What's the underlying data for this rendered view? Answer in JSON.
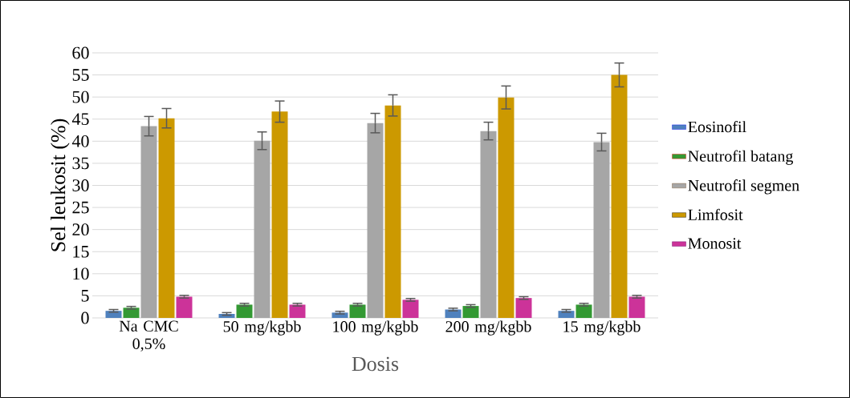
{
  "chart_data": {
    "type": "bar",
    "xlabel": "Dosis",
    "ylabel": "Sel leukosit (%)",
    "categories": [
      "Na CMC 0,5%",
      "50 mg/kgbb",
      "100 mg/kgbb",
      "200 mg/kgbb",
      "15 mg/kgbb"
    ],
    "series": [
      {
        "name": "Eosinofil",
        "color": "#4f81bd",
        "values": [
          1.6,
          0.9,
          1.2,
          1.9,
          1.6
        ],
        "errors": [
          0.3,
          0.3,
          0.3,
          0.3,
          0.3
        ]
      },
      {
        "name": "Neutrofil batang",
        "color": "#339933",
        "values": [
          2.3,
          3.0,
          3.0,
          2.7,
          3.0
        ],
        "errors": [
          0.3,
          0.3,
          0.3,
          0.3,
          0.3
        ]
      },
      {
        "name": "Neutrofil segmen",
        "color": "#a6a6a6",
        "values": [
          43.4,
          40.1,
          44.1,
          42.3,
          39.8
        ],
        "errors": [
          2.2,
          2.0,
          2.2,
          2.0,
          2.0
        ]
      },
      {
        "name": "Limfosit",
        "color": "#cc9900",
        "values": [
          45.2,
          46.7,
          48.1,
          49.9,
          55.0
        ],
        "errors": [
          2.2,
          2.4,
          2.4,
          2.6,
          2.7
        ]
      },
      {
        "name": "Monosit",
        "color": "#cc3399",
        "values": [
          4.8,
          3.0,
          4.1,
          4.5,
          4.8
        ],
        "errors": [
          0.3,
          0.3,
          0.3,
          0.3,
          0.3
        ]
      }
    ],
    "ylim": [
      0,
      60
    ],
    "yticks": [
      0,
      5,
      10,
      15,
      20,
      25,
      30,
      35,
      40,
      45,
      50,
      55,
      60
    ],
    "grid": "y",
    "legend": "right"
  }
}
